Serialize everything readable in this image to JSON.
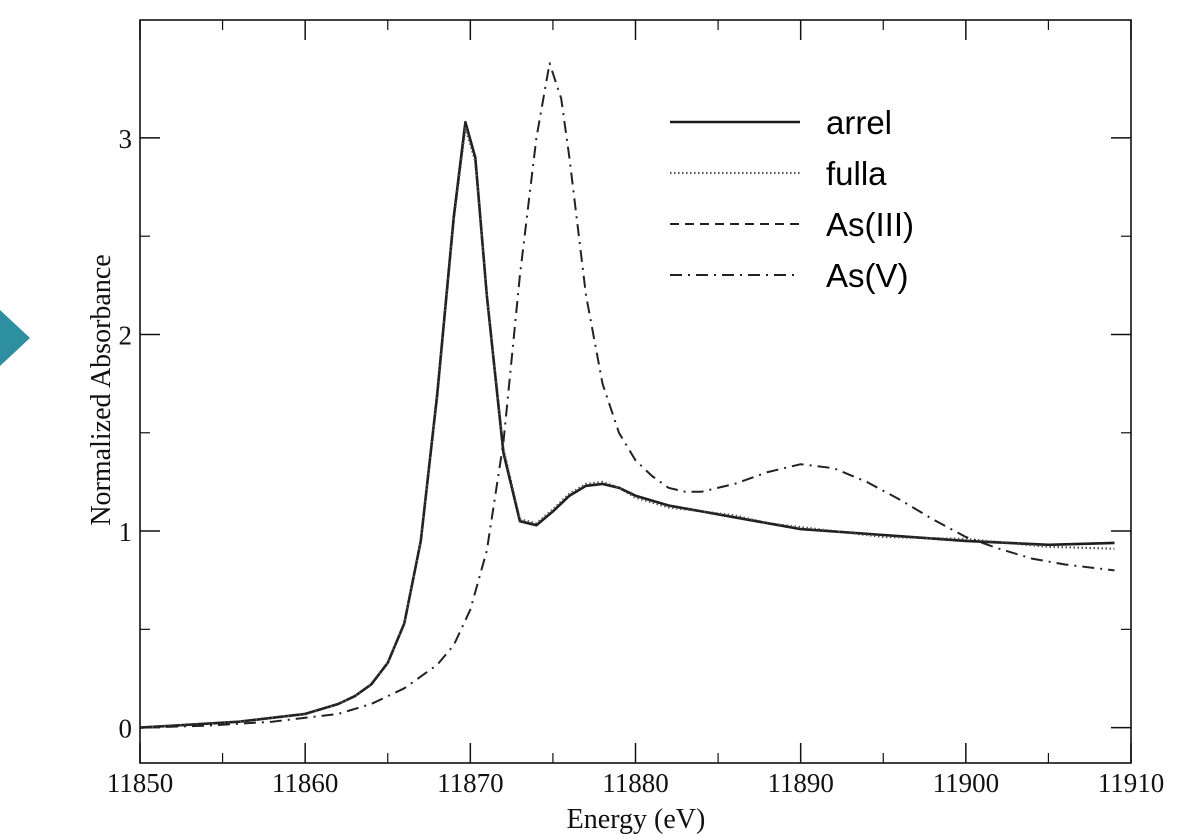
{
  "slide": {
    "arrow_color": "#2e8fa0"
  },
  "chart_data": {
    "type": "line",
    "title": "",
    "xlabel": "Energy (eV)",
    "ylabel": "Normalized Absorbance",
    "xlim": [
      11850,
      11910
    ],
    "ylim": [
      -0.18,
      3.6
    ],
    "xticks": [
      11850,
      11860,
      11870,
      11880,
      11890,
      11900,
      11910
    ],
    "yticks": [
      0,
      1,
      2,
      3
    ],
    "grid": false,
    "legend_position": "top-right",
    "series": [
      {
        "name": "arrel",
        "style": "solid",
        "x": [
          11850,
          11852,
          11854,
          11856,
          11858,
          11860,
          11862,
          11863,
          11864,
          11865,
          11866,
          11867,
          11868,
          11869,
          11869.7,
          11870.3,
          11871,
          11872,
          11873,
          11874,
          11875,
          11876,
          11877,
          11878,
          11879,
          11880,
          11882,
          11884,
          11886,
          11888,
          11890,
          11895,
          11900,
          11905,
          11909
        ],
        "y": [
          0.0,
          0.01,
          0.02,
          0.03,
          0.05,
          0.07,
          0.12,
          0.16,
          0.22,
          0.33,
          0.53,
          0.95,
          1.7,
          2.6,
          3.08,
          2.9,
          2.2,
          1.4,
          1.05,
          1.03,
          1.1,
          1.18,
          1.23,
          1.24,
          1.22,
          1.18,
          1.13,
          1.1,
          1.07,
          1.04,
          1.01,
          0.98,
          0.95,
          0.93,
          0.94
        ]
      },
      {
        "name": "fulla",
        "style": "dotted",
        "x": [
          11850,
          11852,
          11854,
          11856,
          11858,
          11860,
          11862,
          11863,
          11864,
          11865,
          11866,
          11867,
          11868,
          11869,
          11869.7,
          11870.3,
          11871,
          11872,
          11873,
          11874,
          11875,
          11876,
          11877,
          11878,
          11879,
          11880,
          11882,
          11884,
          11886,
          11888,
          11890,
          11895,
          11900,
          11905,
          11909
        ],
        "y": [
          0.0,
          0.01,
          0.02,
          0.03,
          0.05,
          0.07,
          0.12,
          0.16,
          0.22,
          0.33,
          0.53,
          0.95,
          1.68,
          2.58,
          3.05,
          2.88,
          2.2,
          1.42,
          1.06,
          1.04,
          1.11,
          1.19,
          1.24,
          1.25,
          1.22,
          1.17,
          1.12,
          1.1,
          1.08,
          1.04,
          1.02,
          0.97,
          0.96,
          0.92,
          0.91
        ]
      },
      {
        "name": "As(III)",
        "style": "dashed",
        "x": [
          11850,
          11852,
          11854,
          11856,
          11858,
          11860,
          11862,
          11863,
          11864,
          11865,
          11866,
          11867,
          11868,
          11869,
          11869.7,
          11870.3,
          11871,
          11872,
          11873,
          11874,
          11875,
          11876,
          11877,
          11878,
          11879,
          11880,
          11882,
          11884,
          11886,
          11888,
          11890,
          11895,
          11900,
          11905,
          11909
        ],
        "y": [
          0.0,
          0.01,
          0.02,
          0.03,
          0.05,
          0.07,
          0.12,
          0.16,
          0.22,
          0.33,
          0.53,
          0.95,
          1.7,
          2.6,
          3.08,
          2.9,
          2.2,
          1.4,
          1.05,
          1.03,
          1.1,
          1.18,
          1.23,
          1.24,
          1.22,
          1.18,
          1.13,
          1.1,
          1.07,
          1.04,
          1.01,
          0.98,
          0.95,
          0.93,
          0.94
        ]
      },
      {
        "name": "As(V)",
        "style": "dashdot",
        "x": [
          11850,
          11854,
          11858,
          11862,
          11864,
          11866,
          11868,
          11869,
          11870,
          11871,
          11872,
          11873,
          11874,
          11874.8,
          11875.5,
          11876,
          11877,
          11878,
          11879,
          11880,
          11881,
          11882,
          11883,
          11884,
          11886,
          11888,
          11890,
          11892,
          11894,
          11896,
          11898,
          11900,
          11902,
          11904,
          11906,
          11909
        ],
        "y": [
          0.0,
          0.01,
          0.03,
          0.07,
          0.12,
          0.2,
          0.32,
          0.42,
          0.6,
          0.9,
          1.45,
          2.3,
          3.0,
          3.38,
          3.2,
          2.9,
          2.2,
          1.75,
          1.5,
          1.36,
          1.28,
          1.22,
          1.2,
          1.2,
          1.24,
          1.3,
          1.34,
          1.32,
          1.25,
          1.16,
          1.06,
          0.97,
          0.91,
          0.86,
          0.83,
          0.8
        ]
      }
    ]
  }
}
